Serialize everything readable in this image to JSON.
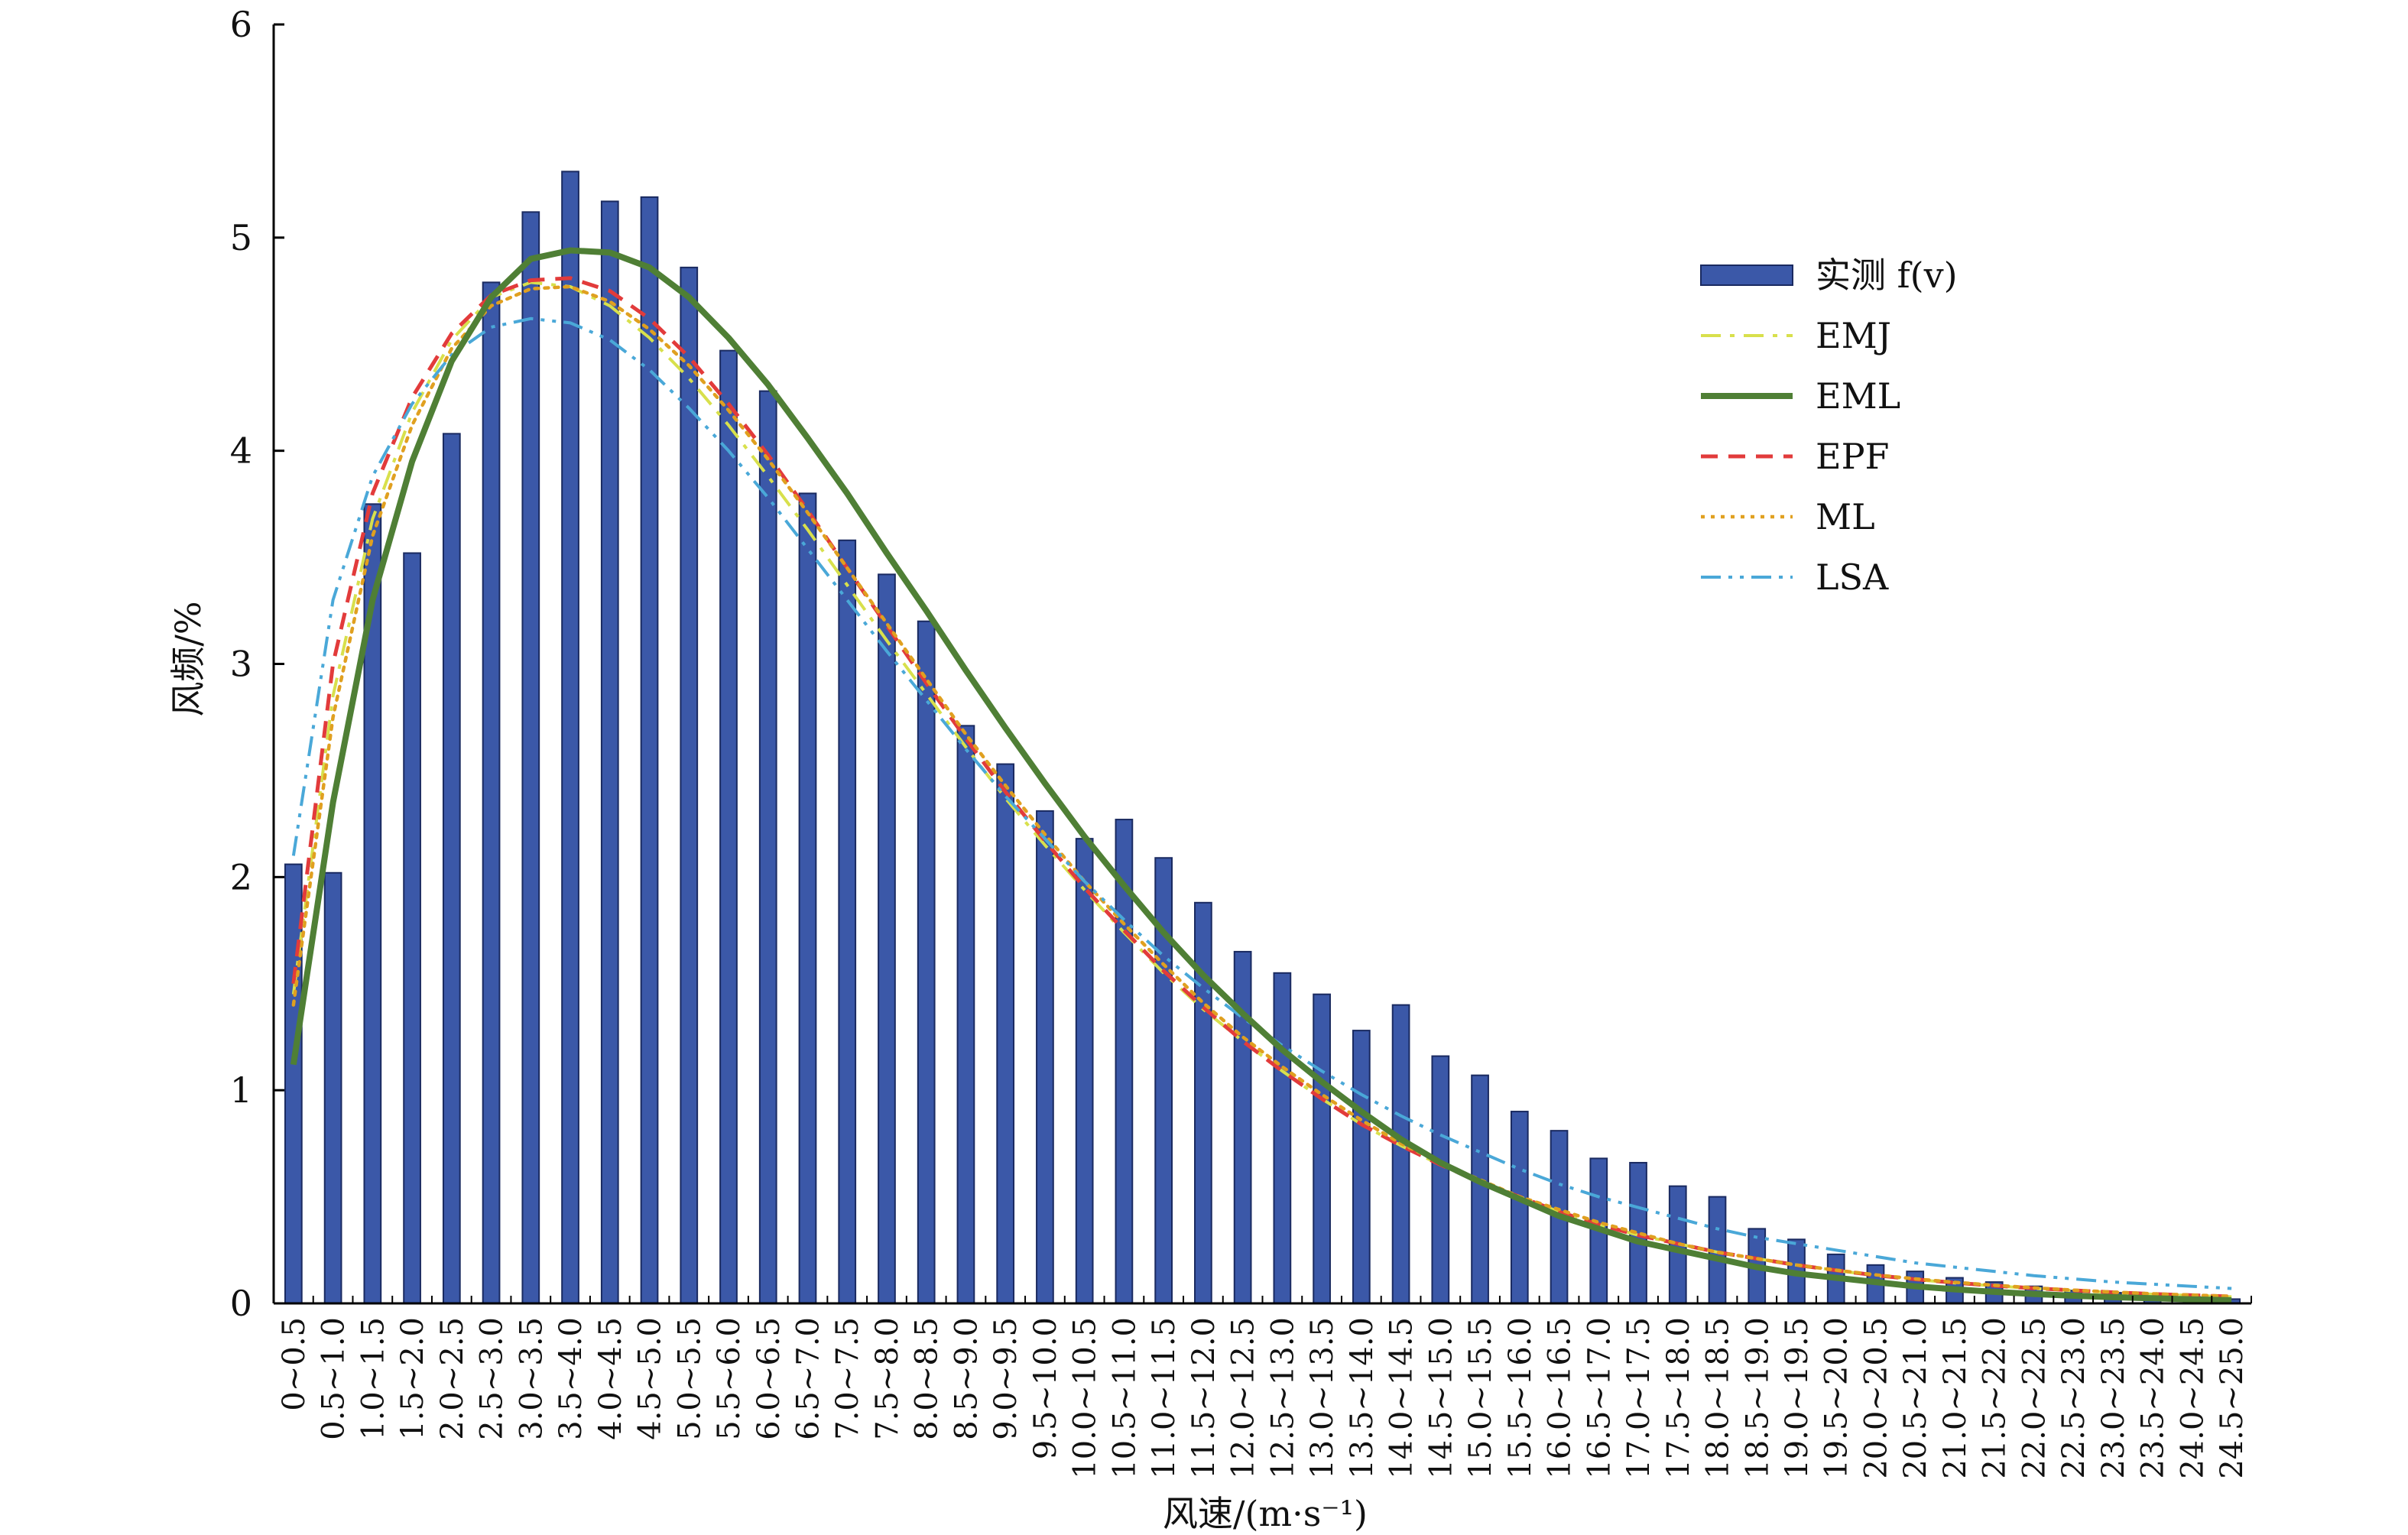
{
  "chart_data": {
    "type": "bar",
    "xlabel": "风速/(m·s⁻¹)",
    "ylabel": "风频/%",
    "ylim": [
      0,
      6
    ],
    "yticks": [
      0,
      1,
      2,
      3,
      4,
      5,
      6
    ],
    "grid": false,
    "legend_position": "top-right",
    "categories": [
      "0~0.5",
      "0.5~1.0",
      "1.0~1.5",
      "1.5~2.0",
      "2.0~2.5",
      "2.5~3.0",
      "3.0~3.5",
      "3.5~4.0",
      "4.0~4.5",
      "4.5~5.0",
      "5.0~5.5",
      "5.5~6.0",
      "6.0~6.5",
      "6.5~7.0",
      "7.0~7.5",
      "7.5~8.0",
      "8.0~8.5",
      "8.5~9.0",
      "9.0~9.5",
      "9.5~10.0",
      "10.0~10.5",
      "10.5~11.0",
      "11.0~11.5",
      "11.5~12.0",
      "12.0~12.5",
      "12.5~13.0",
      "13.0~13.5",
      "13.5~14.0",
      "14.0~14.5",
      "14.5~15.0",
      "15.0~15.5",
      "15.5~16.0",
      "16.0~16.5",
      "16.5~17.0",
      "17.0~17.5",
      "17.5~18.0",
      "18.0~18.5",
      "18.5~19.0",
      "19.0~19.5",
      "19.5~20.0",
      "20.0~20.5",
      "20.5~21.0",
      "21.0~21.5",
      "21.5~22.0",
      "22.0~22.5",
      "22.5~23.0",
      "23.0~23.5",
      "23.5~24.0",
      "24.0~24.5",
      "24.5~25.0"
    ],
    "series": [
      {
        "name": "实测 f(v)",
        "kind": "bar",
        "color": "#3b58a8",
        "values": [
          2.06,
          2.02,
          3.75,
          3.52,
          4.08,
          4.79,
          5.12,
          5.31,
          5.17,
          5.19,
          4.86,
          4.47,
          4.28,
          3.8,
          3.58,
          3.42,
          3.2,
          2.71,
          2.53,
          2.31,
          2.18,
          2.27,
          2.09,
          1.88,
          1.65,
          1.55,
          1.45,
          1.28,
          1.4,
          1.16,
          1.07,
          0.9,
          0.81,
          0.68,
          0.66,
          0.55,
          0.5,
          0.35,
          0.3,
          0.23,
          0.18,
          0.15,
          0.12,
          0.1,
          0.08,
          0.06,
          0.05,
          0.04,
          0.03,
          0.02
        ]
      },
      {
        "name": "EMJ",
        "kind": "line",
        "dash": "dashdot",
        "color": "#d8e04c",
        "values": [
          1.45,
          2.85,
          3.68,
          4.18,
          4.52,
          4.72,
          4.79,
          4.77,
          4.68,
          4.53,
          4.34,
          4.12,
          3.88,
          3.63,
          3.37,
          3.11,
          2.86,
          2.61,
          2.37,
          2.15,
          1.94,
          1.74,
          1.55,
          1.38,
          1.23,
          1.09,
          0.96,
          0.84,
          0.74,
          0.65,
          0.57,
          0.5,
          0.43,
          0.37,
          0.32,
          0.28,
          0.24,
          0.21,
          0.18,
          0.155,
          0.13,
          0.112,
          0.096,
          0.082,
          0.07,
          0.06,
          0.051,
          0.043,
          0.037,
          0.031
        ]
      },
      {
        "name": "EML",
        "kind": "line",
        "dash": "solid",
        "color": "#4f7f35",
        "values": [
          1.12,
          2.35,
          3.3,
          3.95,
          4.42,
          4.72,
          4.9,
          4.94,
          4.93,
          4.86,
          4.72,
          4.53,
          4.31,
          4.06,
          3.8,
          3.52,
          3.25,
          2.97,
          2.7,
          2.44,
          2.19,
          1.96,
          1.74,
          1.54,
          1.36,
          1.19,
          1.04,
          0.9,
          0.77,
          0.66,
          0.57,
          0.49,
          0.41,
          0.35,
          0.29,
          0.25,
          0.21,
          0.17,
          0.14,
          0.12,
          0.1,
          0.08,
          0.066,
          0.054,
          0.044,
          0.036,
          0.029,
          0.024,
          0.019,
          0.015
        ]
      },
      {
        "name": "EPF",
        "kind": "line",
        "dash": "dashed",
        "color": "#e23b3b",
        "values": [
          1.5,
          3.0,
          3.8,
          4.25,
          4.55,
          4.73,
          4.8,
          4.81,
          4.75,
          4.62,
          4.44,
          4.22,
          3.98,
          3.72,
          3.45,
          3.18,
          2.91,
          2.65,
          2.4,
          2.17,
          1.95,
          1.75,
          1.56,
          1.39,
          1.23,
          1.09,
          0.96,
          0.84,
          0.74,
          0.65,
          0.57,
          0.5,
          0.43,
          0.37,
          0.32,
          0.28,
          0.24,
          0.21,
          0.18,
          0.155,
          0.132,
          0.113,
          0.097,
          0.083,
          0.071,
          0.061,
          0.052,
          0.044,
          0.038,
          0.032
        ]
      },
      {
        "name": "ML",
        "kind": "line",
        "dash": "dotted",
        "color": "#e0a020",
        "values": [
          1.4,
          2.75,
          3.6,
          4.12,
          4.48,
          4.68,
          4.76,
          4.77,
          4.7,
          4.57,
          4.4,
          4.19,
          3.96,
          3.71,
          3.45,
          3.19,
          2.93,
          2.67,
          2.43,
          2.2,
          1.98,
          1.78,
          1.59,
          1.41,
          1.25,
          1.11,
          0.98,
          0.86,
          0.75,
          0.66,
          0.58,
          0.5,
          0.44,
          0.38,
          0.33,
          0.28,
          0.24,
          0.21,
          0.18,
          0.156,
          0.134,
          0.115,
          0.099,
          0.085,
          0.073,
          0.062,
          0.053,
          0.045,
          0.039,
          0.033
        ]
      },
      {
        "name": "LSA",
        "kind": "line",
        "dash": "dashdotdot",
        "color": "#4aa8d8",
        "values": [
          2.1,
          3.3,
          3.88,
          4.22,
          4.45,
          4.58,
          4.62,
          4.6,
          4.52,
          4.38,
          4.2,
          4.0,
          3.78,
          3.54,
          3.3,
          3.06,
          2.83,
          2.6,
          2.38,
          2.18,
          1.98,
          1.8,
          1.63,
          1.48,
          1.34,
          1.21,
          1.09,
          0.98,
          0.88,
          0.79,
          0.71,
          0.63,
          0.56,
          0.5,
          0.45,
          0.4,
          0.35,
          0.31,
          0.28,
          0.25,
          0.22,
          0.19,
          0.17,
          0.15,
          0.13,
          0.115,
          0.1,
          0.09,
          0.08,
          0.07
        ]
      }
    ]
  }
}
